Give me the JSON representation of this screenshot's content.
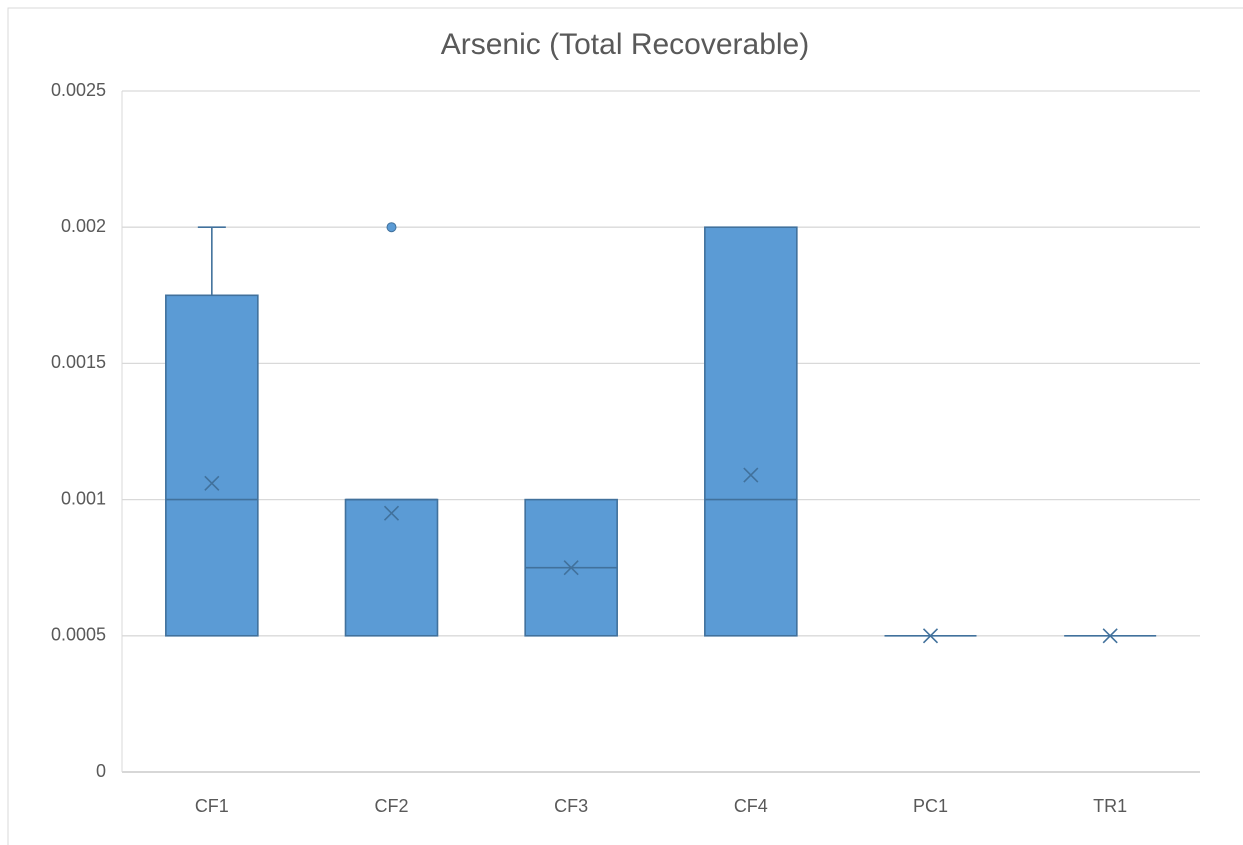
{
  "chart_data": {
    "type": "box",
    "title": "Arsenic (Total Recoverable)",
    "categories": [
      "CF1",
      "CF2",
      "CF3",
      "CF4",
      "PC1",
      "TR1"
    ],
    "boxes": [
      {
        "min": 0.0005,
        "q1": 0.0005,
        "median": 0.001,
        "q3": 0.00175,
        "max": 0.002,
        "mean": 0.00106,
        "outliers": []
      },
      {
        "min": 0.0005,
        "q1": 0.0005,
        "median": 0.001,
        "q3": 0.001,
        "max": 0.001,
        "mean": 0.00095,
        "outliers": [
          0.002
        ]
      },
      {
        "min": 0.0005,
        "q1": 0.0005,
        "median": 0.00075,
        "q3": 0.001,
        "max": 0.001,
        "mean": 0.00075,
        "outliers": []
      },
      {
        "min": 0.0005,
        "q1": 0.0005,
        "median": 0.001,
        "q3": 0.002,
        "max": 0.002,
        "mean": 0.00109,
        "outliers": []
      },
      {
        "min": 0.0005,
        "q1": 0.0005,
        "median": 0.0005,
        "q3": 0.0005,
        "max": 0.0005,
        "mean": 0.0005,
        "outliers": []
      },
      {
        "min": 0.0005,
        "q1": 0.0005,
        "median": 0.0005,
        "q3": 0.0005,
        "max": 0.0005,
        "mean": 0.0005,
        "outliers": []
      }
    ],
    "color": "#5b9bd5",
    "edge_color": "#41719c",
    "ylim": [
      0,
      0.0025
    ],
    "yticks": [
      0,
      0.0005,
      0.001,
      0.0015,
      0.002,
      0.0025
    ],
    "grid": true
  }
}
